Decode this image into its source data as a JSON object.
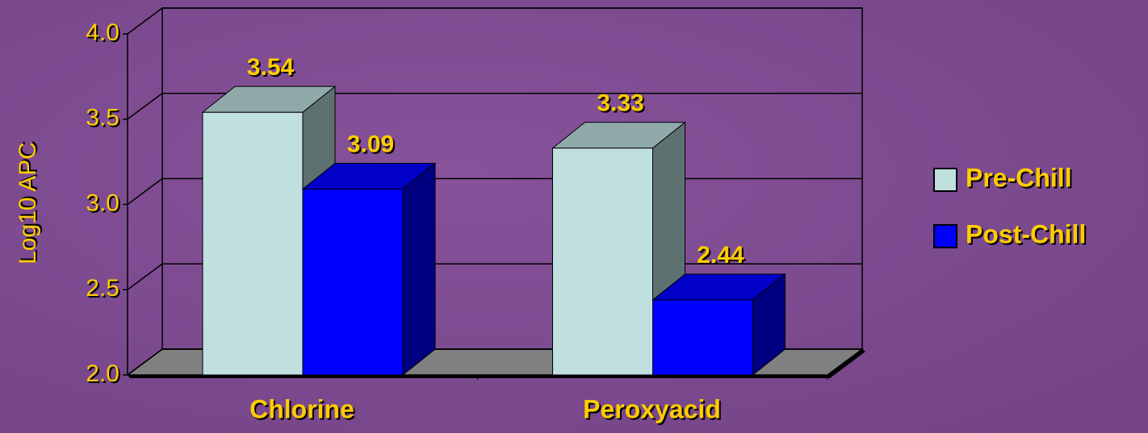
{
  "chart_data": {
    "type": "bar3d",
    "y_label": "Log10 APC",
    "categories": [
      "Chlorine",
      "Peroxyacid"
    ],
    "series": [
      {
        "name": "Pre-Chill",
        "color": "#c0e0e0",
        "values": [
          3.54,
          3.33
        ]
      },
      {
        "name": "Post-Chill",
        "color": "#0000ff",
        "values": [
          3.09,
          2.44
        ]
      }
    ],
    "ylim": [
      2.0,
      4.0
    ],
    "yticks": [
      {
        "value": 2.0,
        "label": "2.0"
      },
      2.5,
      {
        "value": 3.0,
        "label": "3.0"
      },
      3.5,
      {
        "value": 4.0,
        "label": "4.0"
      }
    ],
    "grid": true,
    "legend": "right"
  }
}
